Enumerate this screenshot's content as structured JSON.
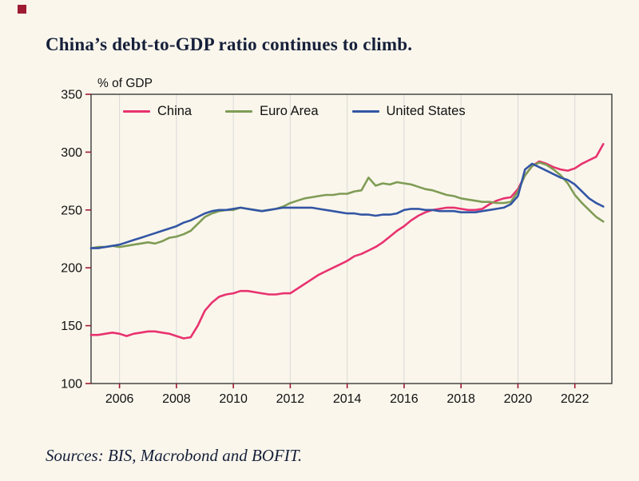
{
  "page": {
    "title": "China’s debt-to-GDP ratio continues to climb.",
    "sources": "Sources: BIS, Macrobond and BOFIT.",
    "background": "#faf6ec",
    "accent_red": "#9e1b32",
    "title_color": "#16203a"
  },
  "chart_data": {
    "type": "line",
    "title": "China’s debt-to-GDP ratio continues to climb.",
    "unit_label": "% of GDP",
    "xlabel": "",
    "ylabel": "% of GDP",
    "ylim": [
      100,
      350
    ],
    "y_ticks": [
      100,
      150,
      200,
      250,
      300,
      350
    ],
    "xlim": [
      2005,
      2023.3
    ],
    "x_ticks": [
      2006,
      2008,
      2010,
      2012,
      2014,
      2016,
      2018,
      2020,
      2022
    ],
    "grid": "vertical",
    "legend_position": "top-inside",
    "x_start": 2005.0,
    "x_step": 0.25,
    "series": [
      {
        "name": "China",
        "color": "#e8326f",
        "values": [
          142,
          142,
          143,
          144,
          143,
          141,
          143,
          144,
          145,
          145,
          144,
          143,
          141,
          139,
          140,
          150,
          163,
          170,
          175,
          177,
          178,
          180,
          180,
          179,
          178,
          177,
          177,
          178,
          178,
          182,
          186,
          190,
          194,
          197,
          200,
          203,
          206,
          210,
          212,
          215,
          218,
          222,
          227,
          232,
          236,
          241,
          245,
          248,
          250,
          251,
          252,
          252,
          251,
          250,
          250,
          251,
          255,
          258,
          260,
          261,
          268,
          280,
          288,
          292,
          290,
          287,
          285,
          284,
          286,
          290,
          293,
          296,
          307
        ]
      },
      {
        "name": "Euro Area",
        "color": "#7f9c55",
        "values": [
          217,
          218,
          218,
          219,
          218,
          219,
          220,
          221,
          222,
          221,
          223,
          226,
          227,
          229,
          232,
          238,
          244,
          247,
          249,
          250,
          250,
          252,
          251,
          250,
          249,
          250,
          251,
          253,
          256,
          258,
          260,
          261,
          262,
          263,
          263,
          264,
          264,
          266,
          267,
          278,
          271,
          273,
          272,
          274,
          273,
          272,
          270,
          268,
          267,
          265,
          263,
          262,
          260,
          259,
          258,
          257,
          257,
          256,
          256,
          257,
          266,
          280,
          288,
          291,
          289,
          285,
          280,
          273,
          263,
          256,
          250,
          244,
          240
        ]
      },
      {
        "name": "United States",
        "color": "#3355a4",
        "values": [
          217,
          217,
          218,
          219,
          220,
          222,
          224,
          226,
          228,
          230,
          232,
          234,
          236,
          239,
          241,
          244,
          247,
          249,
          250,
          250,
          251,
          252,
          251,
          250,
          249,
          250,
          251,
          252,
          252,
          252,
          252,
          252,
          251,
          250,
          249,
          248,
          247,
          247,
          246,
          246,
          245,
          246,
          246,
          247,
          250,
          251,
          251,
          250,
          250,
          249,
          249,
          249,
          248,
          248,
          248,
          249,
          250,
          251,
          252,
          255,
          262,
          285,
          290,
          287,
          284,
          281,
          278,
          276,
          272,
          266,
          260,
          256,
          253
        ]
      }
    ]
  }
}
